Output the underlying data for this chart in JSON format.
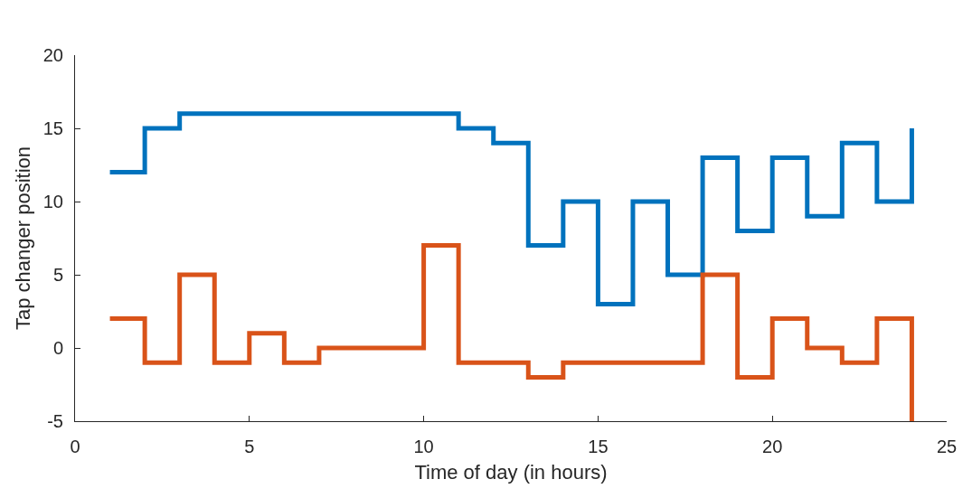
{
  "chart_data": {
    "type": "step",
    "xlabel": "Time of day (in hours)",
    "ylabel": "Tap changer position",
    "x": [
      1,
      2,
      3,
      4,
      5,
      6,
      7,
      8,
      9,
      10,
      11,
      12,
      13,
      14,
      15,
      16,
      17,
      18,
      19,
      20,
      21,
      22,
      23,
      24
    ],
    "series": [
      {
        "color": "#0072bd",
        "values": [
          12,
          15,
          16,
          16,
          16,
          16,
          16,
          16,
          16,
          16,
          15,
          14,
          7,
          10,
          3,
          10,
          5,
          13,
          8,
          13,
          9,
          14,
          10,
          15
        ]
      },
      {
        "color": "#d95319",
        "values": [
          2,
          -1,
          5,
          -1,
          1,
          -1,
          0,
          0,
          0,
          7,
          -1,
          -1,
          -2,
          -1,
          -1,
          -1,
          -1,
          5,
          -2,
          2,
          0,
          -1,
          2,
          -5
        ]
      }
    ],
    "xlim": [
      0,
      25
    ],
    "xticks": [
      0,
      5,
      10,
      15,
      20,
      25
    ],
    "ylim": [
      -5,
      20
    ],
    "yticks": [
      -5,
      0,
      5,
      10,
      15,
      20
    ],
    "grid": false
  }
}
